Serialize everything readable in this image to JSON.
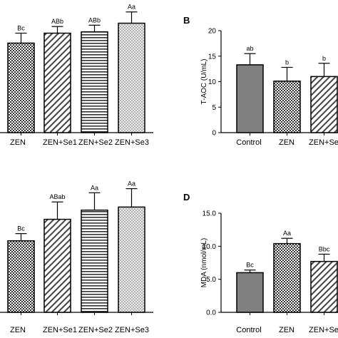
{
  "chart_data": [
    {
      "panel": "",
      "type": "bar",
      "categories": [
        "ZEN",
        "ZEN+Se1",
        "ZEN+Se2",
        "ZEN+Se3"
      ],
      "values": [
        13.5,
        15.0,
        15.2,
        16.5
      ],
      "errors": [
        1.5,
        1.0,
        1.0,
        1.7
      ],
      "annotations": [
        "Bc",
        "ABb",
        "ABb",
        "Aa"
      ],
      "patterns": [
        "checker",
        "diag",
        "horiz",
        "dots"
      ],
      "ylabel": "",
      "ylim": [
        0,
        20
      ]
    },
    {
      "panel": "B",
      "type": "bar",
      "categories": [
        "Control",
        "ZEN",
        "ZEN+Se"
      ],
      "values": [
        13.3,
        10.1,
        11.0
      ],
      "errors": [
        2.2,
        2.7,
        2.6
      ],
      "annotations": [
        "ab",
        "b",
        "b"
      ],
      "patterns": [
        "gray",
        "checker",
        "diag"
      ],
      "ylabel": "T-AOC (U/mL)",
      "yticks": [
        0,
        5,
        10,
        15,
        20
      ],
      "ylim": [
        0,
        20
      ]
    },
    {
      "panel": "",
      "type": "bar",
      "categories": [
        "ZEN",
        "ZEN+Se1",
        "ZEN+Se2",
        "ZEN+Se3"
      ],
      "values": [
        7.0,
        9.1,
        10.0,
        10.3
      ],
      "errors": [
        0.7,
        1.7,
        1.7,
        1.8
      ],
      "annotations": [
        "Bc",
        "ABab",
        "Aa",
        "Aa"
      ],
      "patterns": [
        "checker",
        "diag",
        "horiz",
        "dots"
      ],
      "ylabel": "",
      "ylim": [
        0,
        15
      ]
    },
    {
      "panel": "D",
      "type": "bar",
      "categories": [
        "Control",
        "ZEN",
        "ZEN+Se"
      ],
      "values": [
        6.0,
        10.4,
        7.7
      ],
      "errors": [
        0.4,
        0.8,
        1.1
      ],
      "annotations": [
        "Bc",
        "Aa",
        "Bbc"
      ],
      "patterns": [
        "gray",
        "checker",
        "diag"
      ],
      "ylabel": "MDA (nmol/mL)",
      "yticks": [
        "0.0",
        "5.0",
        "10.0",
        "15.0"
      ],
      "ylim": [
        0,
        15
      ]
    }
  ]
}
